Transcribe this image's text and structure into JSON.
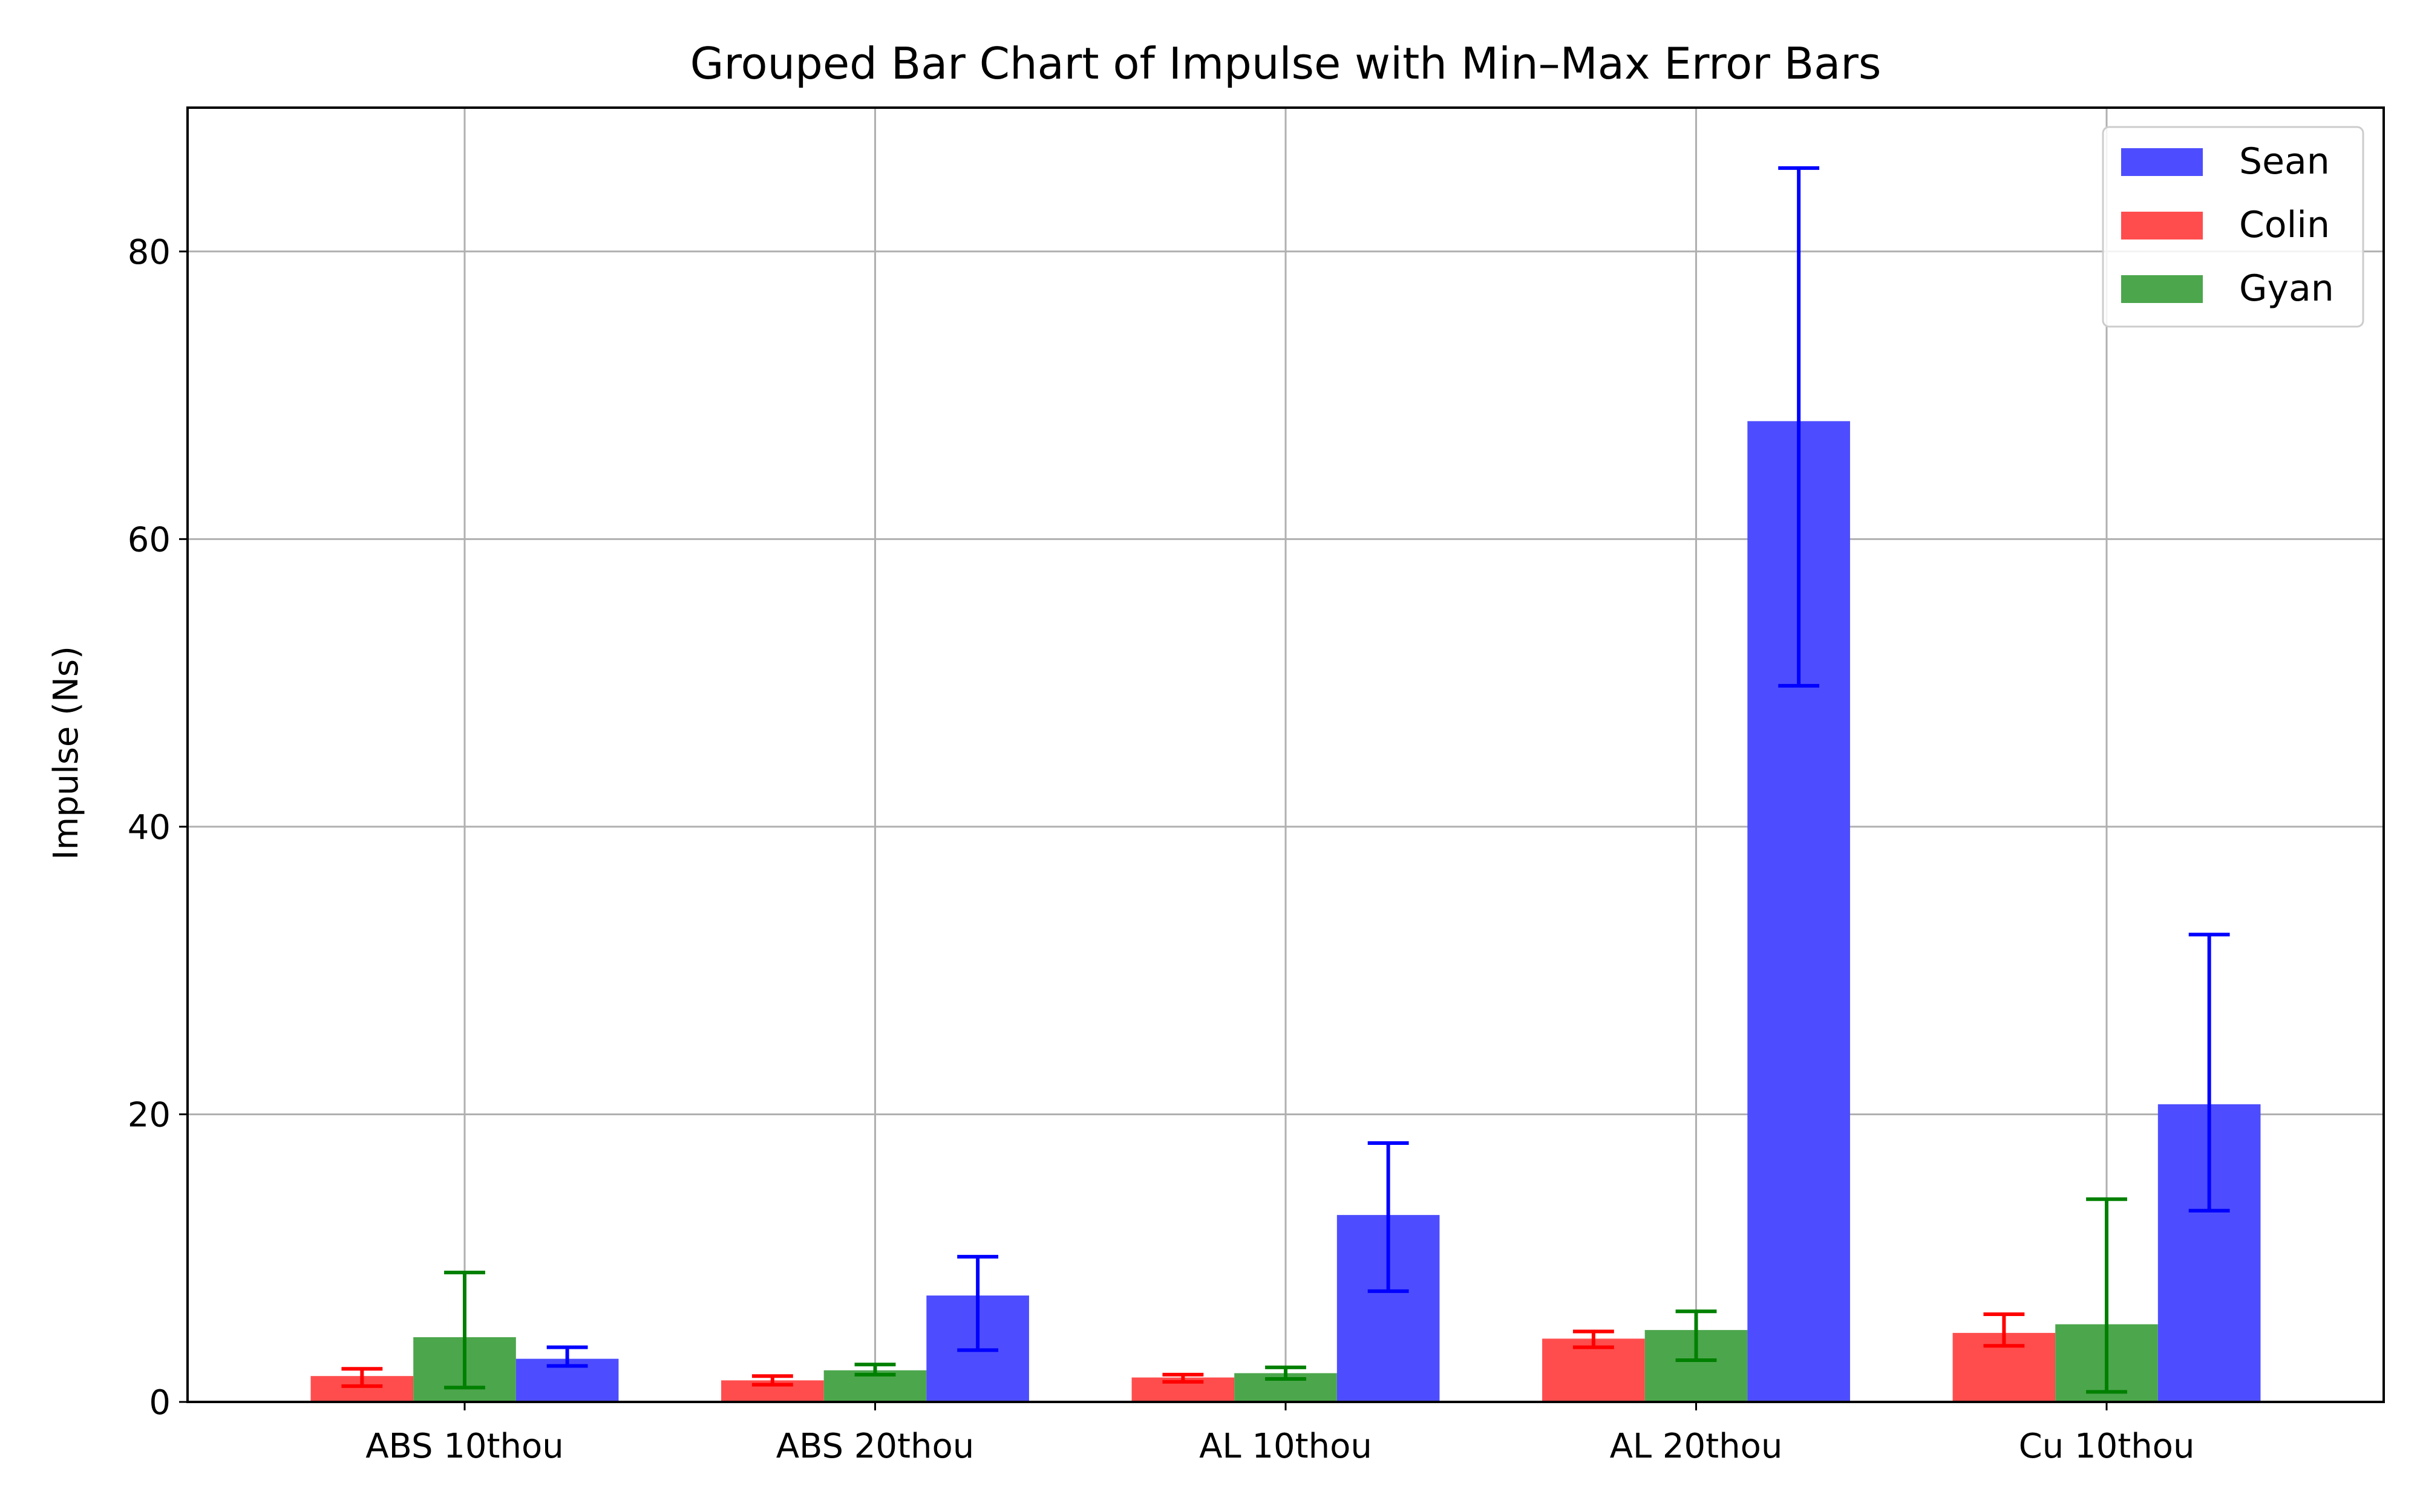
{
  "chart_data": {
    "type": "bar",
    "title": "Grouped Bar Chart of Impulse with Min–Max Error Bars",
    "xlabel": "",
    "ylabel": "Impulse (Ns)",
    "ylim": [
      0,
      90
    ],
    "yticks": [
      0,
      20,
      40,
      60,
      80
    ],
    "grid": true,
    "legend_position": "top-right",
    "categories": [
      "ABS 10thou",
      "ABS 20thou",
      "AL 10thou",
      "AL 20thou",
      "Cu 10thou"
    ],
    "series": [
      {
        "name": "Colin",
        "color": "#ff4d4d",
        "error_color": "#ff0000",
        "values": [
          1.8,
          1.5,
          1.7,
          4.4,
          4.8
        ],
        "min": [
          1.1,
          1.2,
          1.4,
          3.8,
          3.9
        ],
        "max": [
          2.3,
          1.8,
          1.9,
          4.9,
          6.1
        ]
      },
      {
        "name": "Gyan",
        "color": "#4ca64c",
        "error_color": "#008000",
        "values": [
          4.5,
          2.2,
          2.0,
          5.0,
          5.4
        ],
        "min": [
          1.0,
          1.9,
          1.6,
          2.9,
          0.7
        ],
        "max": [
          9.0,
          2.6,
          2.4,
          6.3,
          14.1
        ]
      },
      {
        "name": "Sean",
        "color": "#4d4dff",
        "error_color": "#0000ff",
        "values": [
          3.0,
          7.4,
          13.0,
          68.2,
          20.7
        ],
        "min": [
          2.5,
          3.6,
          7.7,
          49.8,
          13.3
        ],
        "max": [
          3.8,
          10.1,
          18.0,
          85.8,
          32.5
        ]
      }
    ],
    "legend_order": [
      "Sean",
      "Colin",
      "Gyan"
    ]
  }
}
